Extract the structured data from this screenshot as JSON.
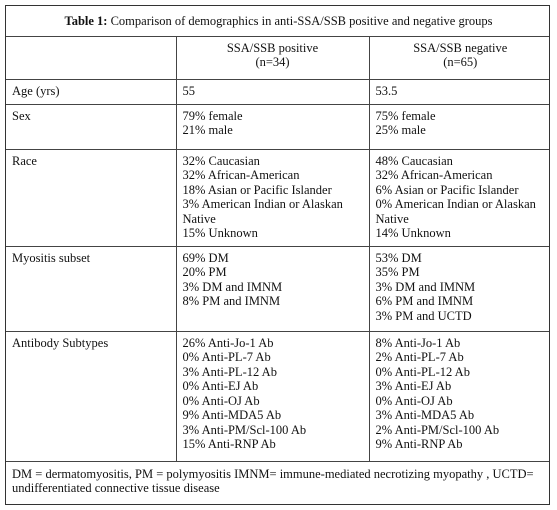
{
  "title": {
    "label": "Table 1:",
    "text": "Comparison of demographics in anti-SSA/SSB positive and negative groups"
  },
  "header": {
    "positive": [
      "SSA/SSB positive",
      "(n=34)"
    ],
    "negative": [
      "SSA/SSB negative",
      "(n=65)"
    ]
  },
  "rows": [
    {
      "label": "Age (yrs)",
      "positive": [
        "55"
      ],
      "negative": [
        "53.5"
      ]
    },
    {
      "label": "Sex",
      "positive": [
        "79% female",
        "21% male"
      ],
      "negative": [
        "75% female",
        "25% male"
      ]
    },
    {
      "label": "Race",
      "positive": [
        "32% Caucasian",
        "32% African-American",
        "18% Asian or Pacific Islander",
        "3% American Indian or Alaskan Native",
        "15% Unknown"
      ],
      "negative": [
        "48% Caucasian",
        "32% African-American",
        "6% Asian or Pacific Islander",
        "0% American Indian or Alaskan Native",
        "14% Unknown"
      ]
    },
    {
      "label": "Myositis subset",
      "positive": [
        "69% DM",
        "20% PM",
        "3% DM and IMNM",
        "8% PM and IMNM"
      ],
      "negative": [
        "53% DM",
        "35% PM",
        "3% DM and IMNM",
        "6% PM and IMNM",
        "3% PM and UCTD"
      ]
    },
    {
      "label": "Antibody Subtypes",
      "positive": [
        "26% Anti-Jo-1 Ab",
        "0% Anti-PL-7 Ab",
        "3% Anti-PL-12 Ab",
        "0% Anti-EJ Ab",
        "0% Anti-OJ Ab",
        "9% Anti-MDA5 Ab",
        "3% Anti-PM/Scl-100 Ab",
        "15% Anti-RNP Ab"
      ],
      "negative": [
        "8% Anti-Jo-1 Ab",
        "2% Anti-PL-7 Ab",
        "0% Anti-PL-12 Ab",
        "3% Anti-EJ Ab",
        "0% Anti-OJ Ab",
        "3% Anti-MDA5 Ab",
        "2% Anti-PM/Scl-100 Ab",
        "9% Anti-RNP Ab"
      ]
    }
  ],
  "footnote": "DM = dermatomyositis, PM = polymyositis IMNM= immune-mediated necrotizing myopathy , UCTD= undifferentiated connective tissue disease"
}
